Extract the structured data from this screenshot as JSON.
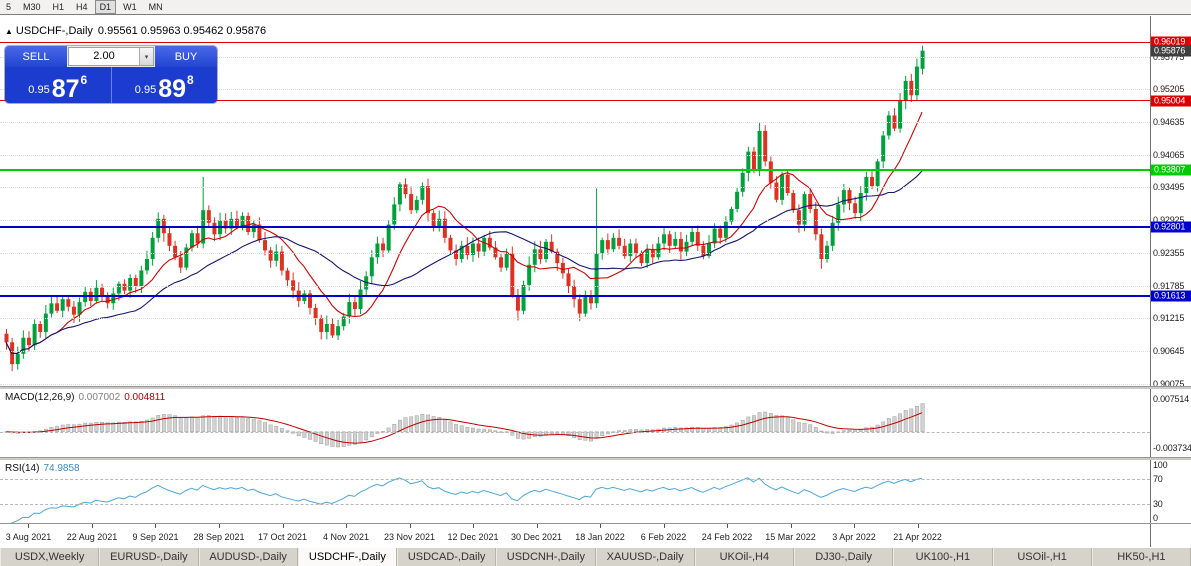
{
  "toolbar": {
    "periods": [
      {
        "label": "5",
        "active": false
      },
      {
        "label": "M30",
        "active": false
      },
      {
        "label": "H1",
        "active": false
      },
      {
        "label": "H4",
        "active": false
      },
      {
        "label": "D1",
        "active": true
      },
      {
        "label": "W1",
        "active": false
      },
      {
        "label": "MN",
        "active": false
      }
    ]
  },
  "title": {
    "symbol_period": "USDCHF-,Daily",
    "ohlc": "0.95561 0.95963 0.95462 0.95876"
  },
  "one_click": {
    "sell_label": "SELL",
    "buy_label": "BUY",
    "volume": "2.00",
    "sell_price": {
      "base": "0.95",
      "big": "87",
      "pip": "6"
    },
    "buy_price": {
      "base": "0.95",
      "big": "89",
      "pip": "8"
    }
  },
  "price_axis": {
    "min": 0.9004,
    "max": 0.9648,
    "ticks": [
      "0.95775",
      "0.95205",
      "0.94635",
      "0.94065",
      "0.93495",
      "0.92925",
      "0.92355",
      "0.91785",
      "0.91215",
      "0.90645",
      "0.90075"
    ]
  },
  "levels": [
    {
      "text": "0.96019",
      "value": 0.96019,
      "color": "#dd0000",
      "width": 1
    },
    {
      "text": "0.95004",
      "value": 0.95004,
      "color": "#dd0000",
      "width": 1
    },
    {
      "text": "0.93807",
      "value": 0.93807,
      "color": "#00cc00",
      "width": 2
    },
    {
      "text": "0.92801",
      "value": 0.92801,
      "color": "#0000cc",
      "width": 2
    },
    {
      "text": "0.91613",
      "value": 0.91613,
      "color": "#0000cc",
      "width": 2
    }
  ],
  "current_price": {
    "text": "0.95876",
    "value": 0.95876,
    "color": "#3f3f3f"
  },
  "indicators": {
    "macd": {
      "name": "MACD(12,26,9)",
      "value_main": "0.007002",
      "value_signal": "0.004811",
      "fast": 12,
      "slow": 26,
      "signal": 9,
      "range": {
        "max": 0.0098,
        "min": -0.0058
      },
      "axis": [
        {
          "text": "0.007514",
          "value": 0.007514
        },
        {
          "text": "-0.003734",
          "value": -0.003734
        }
      ]
    },
    "rsi": {
      "name": "RSI(14)",
      "value": "74.9858",
      "period": 14,
      "range": {
        "max": 100,
        "min": 0
      },
      "level_lines": [
        70,
        30
      ],
      "axis": [
        {
          "text": "100",
          "value": 100
        },
        {
          "text": "70",
          "value": 70
        },
        {
          "text": "30",
          "value": 30
        },
        {
          "text": "0",
          "value": 0
        }
      ]
    }
  },
  "dates": [
    "3 Aug 2021",
    "22 Aug 2021",
    "9 Sep 2021",
    "28 Sep 2021",
    "17 Oct 2021",
    "4 Nov 2021",
    "23 Nov 2021",
    "12 Dec 2021",
    "30 Dec 2021",
    "18 Jan 2022",
    "6 Feb 2022",
    "24 Feb 2022",
    "15 Mar 2022",
    "3 Apr 2022",
    "21 Apr 2022"
  ],
  "tabs": [
    {
      "label": "USDX,Weekly",
      "active": false
    },
    {
      "label": "EURUSD-,Daily",
      "active": false
    },
    {
      "label": "AUDUSD-,Daily",
      "active": false
    },
    {
      "label": "USDCHF-,Daily",
      "active": true
    },
    {
      "label": "USDCAD-,Daily",
      "active": false
    },
    {
      "label": "USDCNH-,Daily",
      "active": false
    },
    {
      "label": "XAUUSD-,Daily",
      "active": false
    },
    {
      "label": "UKOil-,H4",
      "active": false
    },
    {
      "label": "DJ30-,Daily",
      "active": false
    },
    {
      "label": "UK100-,H1",
      "active": false
    },
    {
      "label": "USOil-,H1",
      "active": false
    },
    {
      "label": "HK50-,H1",
      "active": false
    }
  ],
  "colors": {
    "candle_up": "#00a13c",
    "candle_down": "#dd3222",
    "ma_fast": "#d40000",
    "ma_slow": "#16166e",
    "macd_hist": "#d2d2d2",
    "macd_hist_border": "#909090",
    "macd_signal": "#c00000",
    "rsi_line": "#4da6dd",
    "one_click_blue": "#1c3cd0"
  },
  "chart_data": {
    "type": "candlestick",
    "symbol": "USDCHF-",
    "timeframe": "Daily",
    "last_ohlc": {
      "open": 0.95561,
      "high": 0.95963,
      "low": 0.95462,
      "close": 0.95876
    },
    "first_open": 0.9095,
    "closes": [
      0.908,
      0.9042,
      0.906,
      0.9088,
      0.9075,
      0.9112,
      0.9098,
      0.913,
      0.9148,
      0.9135,
      0.9155,
      0.9142,
      0.9128,
      0.915,
      0.9168,
      0.9152,
      0.9175,
      0.916,
      0.9148,
      0.9165,
      0.9182,
      0.917,
      0.9192,
      0.9178,
      0.9205,
      0.9225,
      0.9262,
      0.9295,
      0.927,
      0.9248,
      0.9228,
      0.921,
      0.9245,
      0.927,
      0.9252,
      0.931,
      0.9288,
      0.9268,
      0.9292,
      0.9278,
      0.9295,
      0.9282,
      0.93,
      0.9272,
      0.9285,
      0.9258,
      0.924,
      0.9222,
      0.9238,
      0.9205,
      0.9188,
      0.917,
      0.9152,
      0.9165,
      0.914,
      0.9122,
      0.9098,
      0.9112,
      0.9092,
      0.9108,
      0.9125,
      0.915,
      0.9138,
      0.9172,
      0.9195,
      0.9228,
      0.9252,
      0.924,
      0.9285,
      0.932,
      0.9355,
      0.9338,
      0.931,
      0.9328,
      0.9352,
      0.9305,
      0.9282,
      0.9295,
      0.9262,
      0.924,
      0.9225,
      0.9248,
      0.9232,
      0.9252,
      0.9238,
      0.9262,
      0.9245,
      0.9228,
      0.921,
      0.9235,
      0.9162,
      0.9135,
      0.918,
      0.9215,
      0.9242,
      0.9225,
      0.9255,
      0.9238,
      0.9218,
      0.92,
      0.9178,
      0.9155,
      0.913,
      0.916,
      0.9148,
      0.9235,
      0.9258,
      0.9242,
      0.9262,
      0.9248,
      0.923,
      0.9252,
      0.9235,
      0.9218,
      0.9242,
      0.9228,
      0.9252,
      0.9268,
      0.9248,
      0.926,
      0.9238,
      0.9255,
      0.9272,
      0.9248,
      0.923,
      0.9252,
      0.9278,
      0.9262,
      0.929,
      0.9312,
      0.9342,
      0.9375,
      0.9412,
      0.938,
      0.9448,
      0.9395,
      0.9358,
      0.9328,
      0.9372,
      0.934,
      0.931,
      0.9285,
      0.9338,
      0.9312,
      0.9268,
      0.9225,
      0.9248,
      0.9288,
      0.932,
      0.9345,
      0.9322,
      0.9305,
      0.934,
      0.9368,
      0.9352,
      0.9395,
      0.944,
      0.9475,
      0.9452,
      0.95,
      0.9535,
      0.951,
      0.956,
      0.95876
    ],
    "wick_high_overrides": {
      "35": 0.9368,
      "105": 0.9348,
      "134": 0.9462
    },
    "wick_low_overrides": {
      "1": 0.903,
      "56": 0.9085,
      "91": 0.9118,
      "145": 0.9208
    },
    "moving_averages": [
      {
        "period": 10,
        "color": "#d40000"
      },
      {
        "period": 24,
        "color": "#16166e"
      }
    ]
  }
}
